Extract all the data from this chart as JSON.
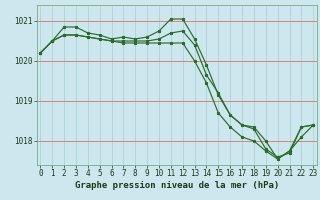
{
  "xlabel": "Graphe pression niveau de la mer (hPa)",
  "hours": [
    0,
    1,
    2,
    3,
    4,
    5,
    6,
    7,
    8,
    9,
    10,
    11,
    12,
    13,
    14,
    15,
    16,
    17,
    18,
    19,
    20,
    21,
    22,
    23
  ],
  "line1": [
    1020.2,
    1020.5,
    1020.65,
    1020.65,
    1020.6,
    1020.55,
    1020.5,
    1020.5,
    1020.5,
    1020.5,
    1020.55,
    1020.7,
    1020.75,
    1020.4,
    1019.65,
    1019.2,
    1018.65,
    1018.4,
    1018.3,
    1017.8,
    1017.6,
    1017.7,
    1018.35,
    1018.4
  ],
  "line2": [
    1020.2,
    1020.5,
    1020.85,
    1020.85,
    1020.7,
    1020.65,
    1020.55,
    1020.6,
    1020.55,
    1020.6,
    1020.75,
    1021.05,
    1021.05,
    1020.55,
    1019.9,
    1019.15,
    1018.65,
    1018.4,
    1018.35,
    1018.0,
    1017.55,
    1017.75,
    1018.1,
    1018.4
  ],
  "line3": [
    1020.2,
    1020.5,
    1020.65,
    1020.65,
    1020.6,
    1020.55,
    1020.5,
    1020.45,
    1020.45,
    1020.45,
    1020.45,
    1020.45,
    1020.45,
    1020.0,
    1019.45,
    1018.7,
    1018.35,
    1018.1,
    1018.0,
    1017.75,
    1017.55,
    1017.75,
    1018.35,
    1018.4
  ],
  "bg_color": "#cce8ee",
  "line_color": "#2d6a2d",
  "grid_color_h": "#d9827a",
  "grid_color_v": "#aaccd4",
  "ylim": [
    1017.4,
    1021.4
  ],
  "yticks": [
    1018,
    1019,
    1020,
    1021
  ],
  "xlabel_fontsize": 6.5,
  "tick_fontsize": 5.5
}
